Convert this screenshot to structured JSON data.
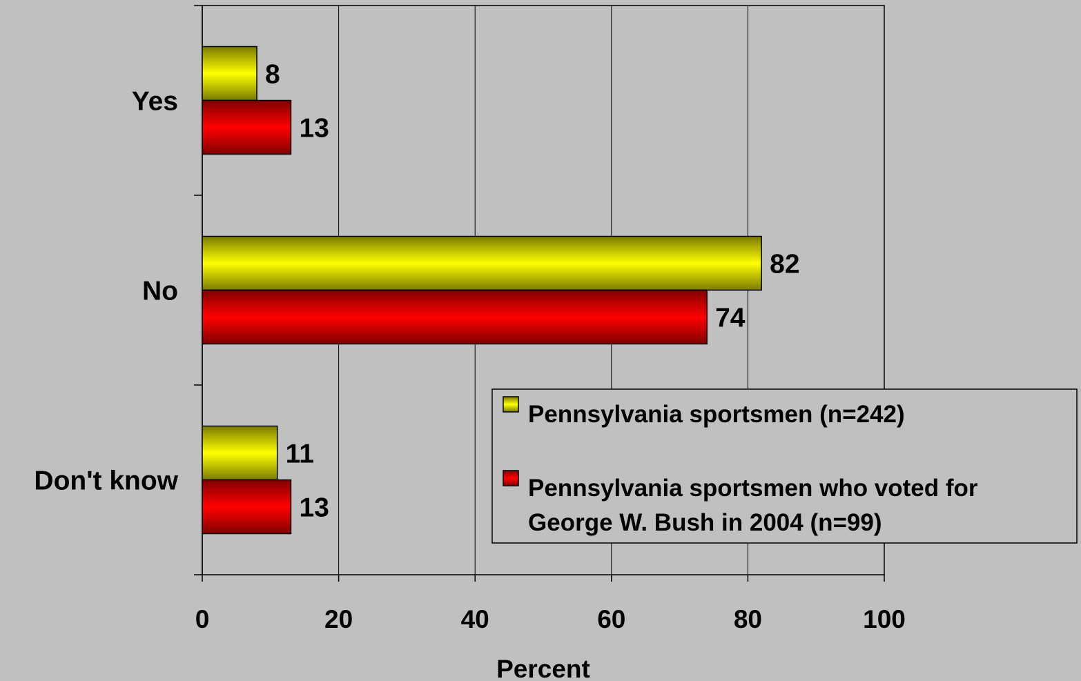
{
  "chart_data": {
    "type": "bar",
    "orientation": "horizontal",
    "categories": [
      "Yes",
      "No",
      "Don't know"
    ],
    "series": [
      {
        "name": "Pennsylvania sportsmen (n=242)",
        "legend_lines": [
          "Pennsylvania sportsmen (n=242)"
        ],
        "color": "#ffff00",
        "values": [
          8,
          82,
          11
        ],
        "labels": [
          "8",
          "82",
          "11"
        ]
      },
      {
        "name": "Pennsylvania sportsmen who voted for George W. Bush in 2004 (n=99)",
        "legend_lines": [
          "Pennsylvania sportsmen who voted for",
          "George W. Bush in 2004 (n=99)"
        ],
        "color": "#ff0000",
        "values": [
          13,
          74,
          13
        ],
        "labels": [
          "13",
          "74",
          "13"
        ]
      }
    ],
    "title": "",
    "xlabel": "Percent",
    "ylabel": "",
    "xlim": [
      0,
      100
    ],
    "xticks": [
      "0",
      "20",
      "40",
      "60",
      "80",
      "100"
    ],
    "grid": true,
    "legend_position": "bottom-right"
  }
}
